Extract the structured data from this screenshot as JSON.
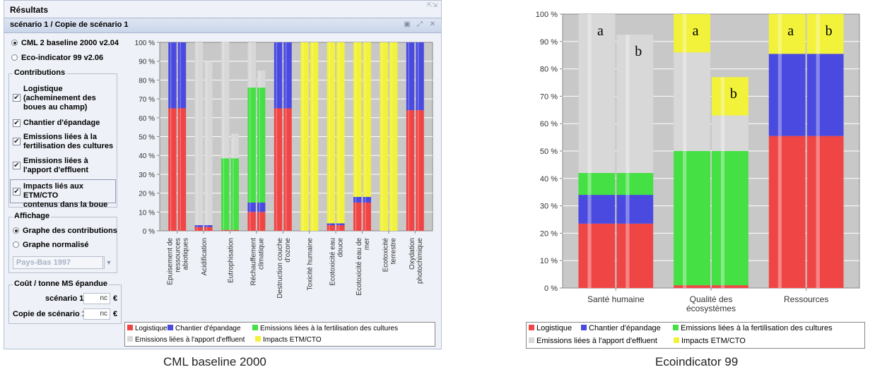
{
  "window": {
    "title": "Résultats",
    "scenario_title": "scénario 1 / Copie de scénario 1",
    "methods": [
      {
        "label": "CML 2 baseline 2000 v2.04",
        "selected": true
      },
      {
        "label": "Eco-indicator 99 v2.06",
        "selected": false
      }
    ],
    "contributions_label": "Contributions",
    "contributions": [
      {
        "lines": [
          "Logistique",
          "(acheminement des",
          "boues au champ)"
        ],
        "checked": true
      },
      {
        "lines": [
          "Chantier d'épandage"
        ],
        "checked": true
      },
      {
        "lines": [
          "Emissions liées à la",
          "fertilisation des cultures"
        ],
        "checked": true
      },
      {
        "lines": [
          "Emissions liées à",
          "l'apport d'effluent"
        ],
        "checked": true
      },
      {
        "lines": [
          "Impacts liés aux ETM/CTO",
          "contenus dans la boue"
        ],
        "checked": true
      }
    ],
    "display_label": "Affichage",
    "display_options": [
      {
        "label": "Graphe des contributions",
        "selected": true
      },
      {
        "label": "Graphe normalisé",
        "selected": false
      }
    ],
    "normalization_select": "Pays-Bas 1997",
    "cost_label": "Coût / tonne MS épandue",
    "costs": [
      {
        "label": "scénario 1",
        "value": "nc",
        "unit": "€"
      },
      {
        "label": "Copie de scénario 1",
        "value": "nc",
        "unit": "€"
      }
    ]
  },
  "colors": {
    "logistique": "#f04545",
    "chantier": "#4a4ae0",
    "fertilisation": "#44e044",
    "effluent": "#d8d8d8",
    "etm": "#f2f23a"
  },
  "legend": [
    {
      "key": "logistique",
      "label": "Logistique"
    },
    {
      "key": "chantier",
      "label": "Chantier d'épandage"
    },
    {
      "key": "fertilisation",
      "label": "Emissions liées à la fertilisation des cultures"
    },
    {
      "key": "effluent",
      "label": "Emissions liées à l'apport d'effluent"
    },
    {
      "key": "etm",
      "label": "Impacts ETM/CTO"
    }
  ],
  "captions": {
    "left": "CML baseline 2000",
    "right": "Ecoindicator 99"
  },
  "chart_data": [
    {
      "type": "bar",
      "stacked": true,
      "ylim": [
        0,
        100
      ],
      "yticks": [
        "0 %",
        "10 %",
        "20 %",
        "30 %",
        "40 %",
        "50 %",
        "60 %",
        "70 %",
        "80 %",
        "90 %",
        "100 %"
      ],
      "categories": [
        "Epuisement de ressources abiotiques",
        "Acidification",
        "Eutrophisation",
        "Réchauffement climatique",
        "Destruction couche d'ozone",
        "Toxicité humaine",
        "Ecotoxicité eau douce",
        "Ecotoxicité eau de mer",
        "Ecotoxicité terrestre",
        "Oxydation photochimique"
      ],
      "bars_per_category": 2,
      "series": [
        {
          "name": "Logistique",
          "values": [
            [
              65,
              65
            ],
            [
              2,
              2
            ],
            [
              0.5,
              0.5
            ],
            [
              10,
              10
            ],
            [
              65,
              65
            ],
            [
              0,
              0
            ],
            [
              3,
              3
            ],
            [
              15,
              15
            ],
            [
              0,
              0
            ],
            [
              64,
              64
            ]
          ]
        },
        {
          "name": "Chantier d'épandage",
          "values": [
            [
              35,
              35
            ],
            [
              1,
              1
            ],
            [
              0,
              0
            ],
            [
              5,
              5
            ],
            [
              35,
              35
            ],
            [
              0,
              0
            ],
            [
              1,
              1
            ],
            [
              3,
              3
            ],
            [
              0,
              0
            ],
            [
              36,
              36
            ]
          ]
        },
        {
          "name": "Emissions liées à la fertilisation des cultures",
          "values": [
            [
              0,
              0
            ],
            [
              0,
              0
            ],
            [
              38,
              38
            ],
            [
              61,
              61
            ],
            [
              0,
              0
            ],
            [
              0,
              0
            ],
            [
              0,
              0
            ],
            [
              0,
              0
            ],
            [
              0,
              0
            ],
            [
              0,
              0
            ]
          ]
        },
        {
          "name": "Emissions liées à l'apport d'effluent",
          "values": [
            [
              0,
              0
            ],
            [
              97,
              87
            ],
            [
              62,
              13
            ],
            [
              24,
              9
            ],
            [
              0,
              0
            ],
            [
              0,
              0
            ],
            [
              0,
              0
            ],
            [
              0,
              0
            ],
            [
              0,
              0
            ],
            [
              0,
              0
            ]
          ]
        },
        {
          "name": "Impacts ETM/CTO",
          "values": [
            [
              0,
              0
            ],
            [
              0,
              0
            ],
            [
              0,
              0
            ],
            [
              0,
              0
            ],
            [
              0,
              0
            ],
            [
              100,
              100
            ],
            [
              96,
              96
            ],
            [
              82,
              82
            ],
            [
              100,
              100
            ],
            [
              0,
              0
            ]
          ]
        }
      ]
    },
    {
      "type": "bar",
      "stacked": true,
      "ylim": [
        0,
        100
      ],
      "yticks": [
        "0 %",
        "10 %",
        "20 %",
        "30 %",
        "40 %",
        "50 %",
        "60 %",
        "70 %",
        "80 %",
        "90 %",
        "100 %"
      ],
      "categories": [
        "Santé humaine",
        "Qualité des écosystèmes",
        "Ressources"
      ],
      "bars_per_category": 2,
      "bar_labels": [
        "a",
        "b"
      ],
      "series": [
        {
          "name": "Logistique",
          "values": [
            [
              23.5,
              23.5
            ],
            [
              1,
              1
            ],
            [
              55.5,
              55.5
            ]
          ]
        },
        {
          "name": "Chantier d'épandage",
          "values": [
            [
              10.5,
              10.5
            ],
            [
              0,
              0
            ],
            [
              30,
              30
            ]
          ]
        },
        {
          "name": "Emissions liées à la fertilisation des cultures",
          "values": [
            [
              8,
              8
            ],
            [
              49,
              49
            ],
            [
              0,
              0
            ]
          ]
        },
        {
          "name": "Emissions liées à l'apport d'effluent",
          "values": [
            [
              58,
              50.5
            ],
            [
              36,
              13
            ],
            [
              0,
              0
            ]
          ]
        },
        {
          "name": "Impacts ETM/CTO",
          "values": [
            [
              0,
              0
            ],
            [
              14,
              14
            ],
            [
              14.5,
              14.5
            ]
          ]
        }
      ]
    }
  ]
}
